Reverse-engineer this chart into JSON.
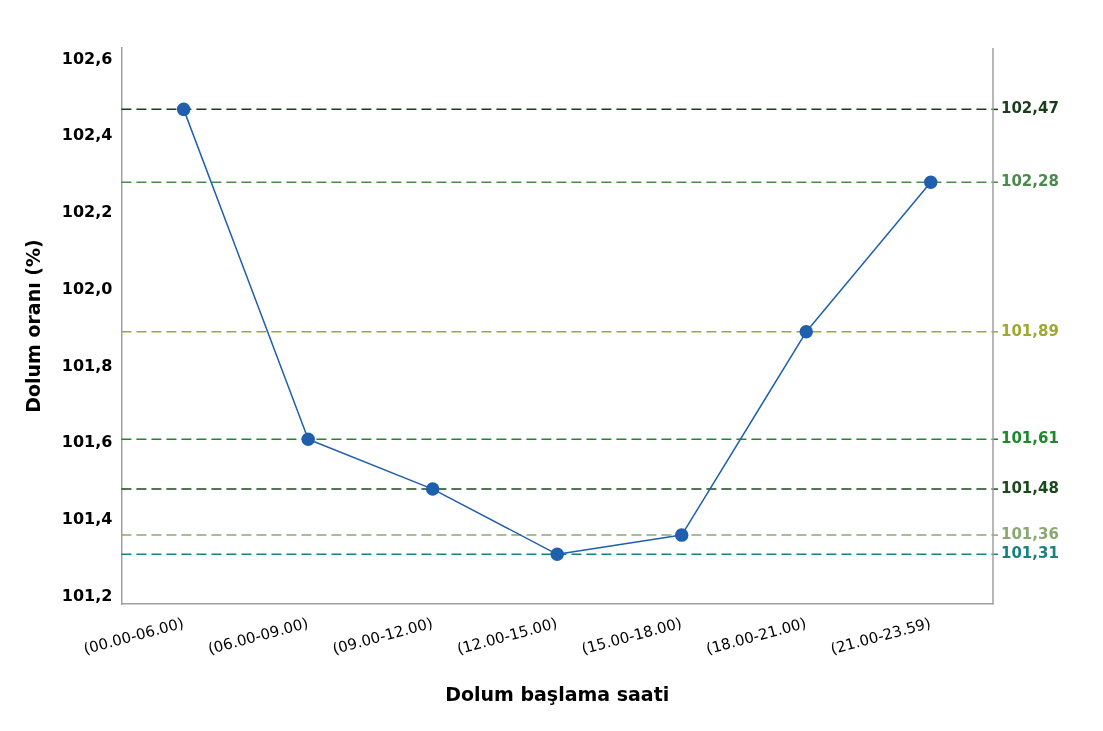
{
  "chart_data": {
    "type": "line",
    "xlabel": "Dolum başlama saati",
    "ylabel": "Dolum oranı (%)",
    "categories": [
      "(00.00-06.00)",
      "(06.00-09.00)",
      "(09.00-12.00)",
      "(12.00-15.00)",
      "(15.00-18.00)",
      "(18.00-21.00)",
      "(21.00-23.59)"
    ],
    "series": [
      {
        "color": "#1f5fad",
        "values": [
          102.47,
          101.61,
          101.48,
          101.31,
          101.36,
          101.89,
          102.28
        ]
      }
    ],
    "ylim": [
      101.18,
      102.63
    ],
    "yticks": [
      {
        "value": 101.2,
        "label": "101,2"
      },
      {
        "value": 101.4,
        "label": "101,4"
      },
      {
        "value": 101.6,
        "label": "101,6"
      },
      {
        "value": 101.8,
        "label": "101,8"
      },
      {
        "value": 102.0,
        "label": "102,0"
      },
      {
        "value": 102.2,
        "label": "102,2"
      },
      {
        "value": 102.4,
        "label": "102,4"
      },
      {
        "value": 102.6,
        "label": "102,6"
      }
    ],
    "ref_lines": [
      {
        "axis": "y",
        "value": 102.47,
        "label": "102,47",
        "color": "#1a3d1a",
        "line_style": "dashed"
      },
      {
        "axis": "y",
        "value": 102.28,
        "label": "102,28",
        "color": "#4a8a4a",
        "line_style": "dashed"
      },
      {
        "axis": "y",
        "value": 101.89,
        "label": "101,89",
        "color": "#a0a830",
        "line_style": "dashed"
      },
      {
        "axis": "y",
        "value": 101.61,
        "label": "101,61",
        "color": "#1a8a2a",
        "line_style": "dashed"
      },
      {
        "axis": "y",
        "value": 101.48,
        "label": "101,48",
        "color": "#1a4a1a",
        "line_style": "dashed"
      },
      {
        "axis": "y",
        "value": 101.36,
        "label": "101,36",
        "color": "#8aa870",
        "line_style": "dashed"
      },
      {
        "axis": "y",
        "value": 101.31,
        "label": "101,31",
        "color": "#1a8080",
        "line_style": "dashed"
      }
    ],
    "marker": "circle",
    "line_style": "solid",
    "grid": false,
    "legend": false
  }
}
